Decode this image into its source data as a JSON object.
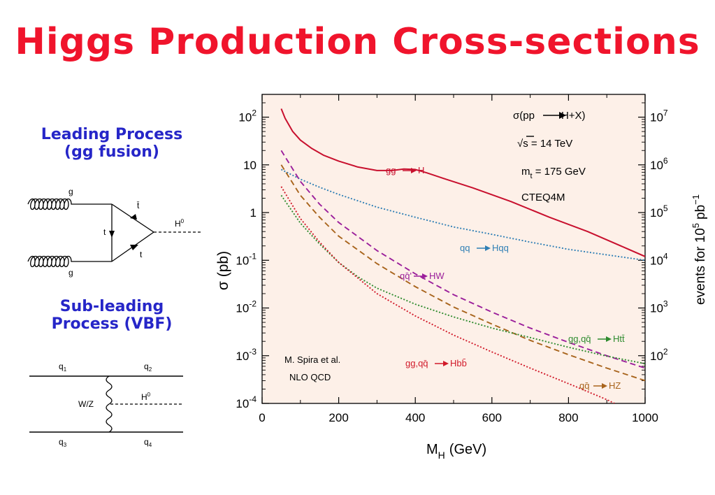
{
  "slide": {
    "title": "Higgs Production Cross-sections",
    "leading_process": [
      "Leading Process",
      "(gg fusion)"
    ],
    "subleading_process": [
      "Sub-leading",
      "Process (VBF)"
    ]
  },
  "feynman_gg": {
    "g_top": "g",
    "g_bottom": "g",
    "t_left": "t",
    "tbar": "t̄",
    "t_right": "t",
    "higgs": "H",
    "higgs_sup": "0"
  },
  "feynman_vbf": {
    "q1": "q",
    "q1_sub": "1",
    "q2": "q",
    "q2_sub": "2",
    "q3": "q",
    "q3_sub": "3",
    "q4": "q",
    "q4_sub": "4",
    "boson": "W/Z",
    "higgs": "H",
    "higgs_sup": "0"
  },
  "chart_data": {
    "type": "line",
    "xlabel": "M",
    "xlabel_sub": "H",
    "xlabel_unit": "(GeV)",
    "ylabel": "σ (pb)",
    "y2label": "events for 10",
    "y2label_sup": "5",
    "y2label_unit": "pb",
    "y2label_unit_sup": "−1",
    "xlim": [
      0,
      1000
    ],
    "ylim": [
      0.0001,
      300
    ],
    "yscale": "log",
    "background": "#fdf0e8",
    "x_ticks": [
      "0",
      "200",
      "400",
      "600",
      "800",
      "1000"
    ],
    "y_ticks": [
      {
        "base": "10",
        "exp": "2",
        "value": 100
      },
      {
        "base": "10",
        "exp": "",
        "value": 10
      },
      {
        "base": "1",
        "exp": "",
        "value": 1
      },
      {
        "base": "10",
        "exp": "-1",
        "value": 0.1
      },
      {
        "base": "10",
        "exp": "-2",
        "value": 0.01
      },
      {
        "base": "10",
        "exp": "-3",
        "value": 0.001
      },
      {
        "base": "10",
        "exp": "-4",
        "value": 0.0001
      }
    ],
    "y2_ticks": [
      {
        "base": "10",
        "exp": "7",
        "value": 100
      },
      {
        "base": "10",
        "exp": "6",
        "value": 10
      },
      {
        "base": "10",
        "exp": "5",
        "value": 1
      },
      {
        "base": "10",
        "exp": "4",
        "value": 0.1
      },
      {
        "base": "10",
        "exp": "3",
        "value": 0.01
      },
      {
        "base": "10",
        "exp": "2",
        "value": 0.001
      }
    ],
    "info": [
      "σ(pp",
      "H+X)",
      "√s = 14 TeV",
      "m",
      "t",
      " = 175 GeV",
      "CTEQ4M"
    ],
    "credit": [
      "M. Spira et al.",
      "NLO  QCD"
    ],
    "series": [
      {
        "name": "gg → H",
        "label_a": "gg",
        "label_b": "H",
        "color": "#c8102e",
        "dash": "solid",
        "x": [
          50,
          60,
          80,
          100,
          130,
          160,
          200,
          250,
          300,
          340,
          370,
          400,
          430,
          480,
          550,
          650,
          750,
          850,
          950,
          1000
        ],
        "y": [
          150,
          95,
          50,
          33,
          22,
          16,
          12,
          9,
          7.6,
          7.6,
          8.2,
          8.0,
          6.8,
          5.0,
          3.3,
          1.7,
          0.8,
          0.4,
          0.18,
          0.12
        ]
      },
      {
        "name": "qq → Hqq",
        "label_a": "qq",
        "label_b": "Hqq",
        "color": "#2f7fb5",
        "dash": "dot",
        "x": [
          50,
          100,
          150,
          200,
          300,
          400,
          500,
          600,
          700,
          800,
          900,
          1000
        ],
        "y": [
          8,
          5,
          3.4,
          2.4,
          1.3,
          0.8,
          0.5,
          0.35,
          0.24,
          0.17,
          0.13,
          0.1
        ]
      },
      {
        "name": "qq̄ → HW",
        "label_a": "qq̄'",
        "label_b": "HW",
        "color": "#9b1f9b",
        "dash": "dash",
        "x": [
          50,
          100,
          150,
          200,
          300,
          400,
          500,
          600,
          700,
          800,
          900,
          1000
        ],
        "y": [
          20,
          4.5,
          1.5,
          0.62,
          0.16,
          0.052,
          0.019,
          0.0082,
          0.0038,
          0.0019,
          0.001,
          0.00055
        ]
      },
      {
        "name": "qq̄ → HZ",
        "label_a": "qq̄",
        "label_b": "HZ",
        "color": "#a8641c",
        "dash": "dash",
        "x": [
          50,
          100,
          150,
          200,
          300,
          400,
          500,
          600,
          700,
          800,
          900,
          1000
        ],
        "y": [
          10,
          2.3,
          0.8,
          0.32,
          0.085,
          0.028,
          0.0105,
          0.0046,
          0.0021,
          0.00105,
          0.00055,
          0.0003
        ]
      },
      {
        "name": "gg,qq̄ → Htt̄",
        "label_a": "gg,qq̄",
        "label_b": "Htt̄",
        "color": "#2e8b2e",
        "dash": "dot",
        "x": [
          50,
          100,
          150,
          200,
          250,
          300,
          400,
          500,
          600,
          700,
          800,
          900,
          1000
        ],
        "y": [
          2.3,
          0.6,
          0.22,
          0.09,
          0.045,
          0.026,
          0.012,
          0.0065,
          0.0038,
          0.0024,
          0.0015,
          0.00098,
          0.00068
        ]
      },
      {
        "name": "gg,qq̄ → Hbb̄",
        "label_a": "gg,qq̄",
        "label_b": "Hbb̄",
        "color": "#d11a2a",
        "dash": "dot",
        "x": [
          50,
          100,
          150,
          200,
          300,
          400,
          500,
          600,
          700,
          800,
          900,
          920
        ],
        "y": [
          3.5,
          0.75,
          0.24,
          0.09,
          0.02,
          0.0068,
          0.0027,
          0.0012,
          0.00055,
          0.00026,
          0.00012,
          0.0001
        ]
      }
    ]
  }
}
